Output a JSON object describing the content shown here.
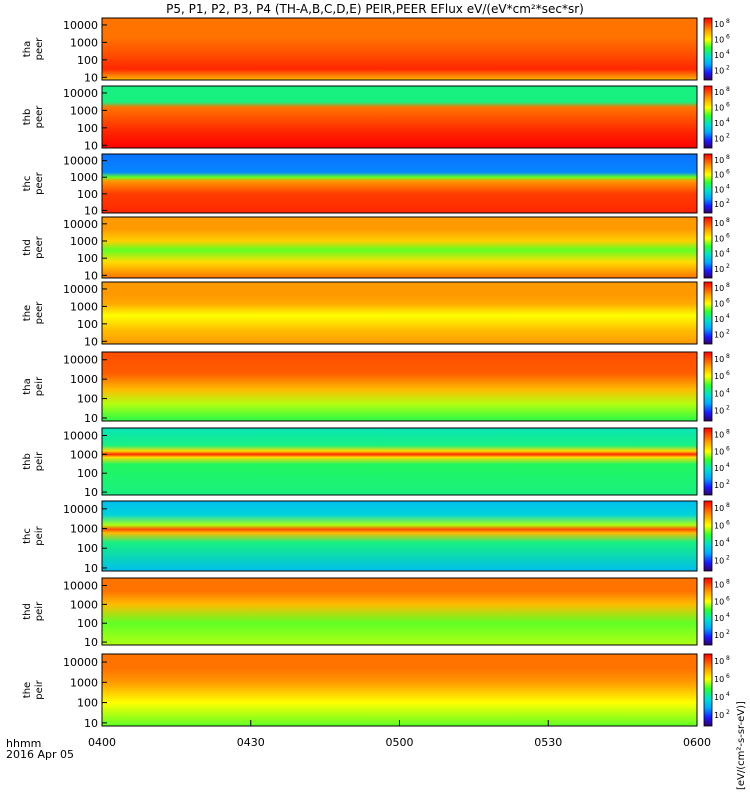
{
  "chart_data": {
    "type": "heatmap",
    "title": "P5, P1, P2, P3, P4 (TH-A,B,C,D,E) PEIR,PEER EFlux eV/(eV*cm²*sec*sr)",
    "x_ticks": [
      "0400",
      "0430",
      "0500",
      "0530",
      "0600"
    ],
    "x_range": [
      "0400",
      "0600"
    ],
    "x_footer": [
      "hhmm",
      "2016 Apr 05"
    ],
    "yscale": "log",
    "ylim": [
      7,
      25000
    ],
    "y_ticks": [
      "10",
      "100",
      "1000",
      "10000"
    ],
    "colorbar": {
      "scale": "log",
      "label": "[eV/(cm²-s-sr-eV)]",
      "tick_exponents": [
        2,
        4,
        6,
        8
      ]
    },
    "panels": [
      {
        "probe": "tha",
        "species": "peer",
        "profile": [
          [
            7,
            0.75
          ],
          [
            30,
            0.95
          ],
          [
            200,
            0.9
          ],
          [
            2000,
            0.85
          ],
          [
            25000,
            0.85
          ]
        ]
      },
      {
        "probe": "thb",
        "species": "peer",
        "profile": [
          [
            7,
            1.0
          ],
          [
            60,
            0.95
          ],
          [
            300,
            0.9
          ],
          [
            1500,
            0.85
          ],
          [
            3000,
            0.45
          ],
          [
            25000,
            0.45
          ]
        ]
      },
      {
        "probe": "thc",
        "species": "peer",
        "profile": [
          [
            7,
            0.95
          ],
          [
            100,
            0.92
          ],
          [
            600,
            0.8
          ],
          [
            1000,
            0.55
          ],
          [
            2000,
            0.22
          ],
          [
            25000,
            0.2
          ]
        ]
      },
      {
        "probe": "thd",
        "species": "peer",
        "profile": [
          [
            7,
            0.85
          ],
          [
            60,
            0.7
          ],
          [
            300,
            0.55
          ],
          [
            1000,
            0.72
          ],
          [
            5000,
            0.8
          ],
          [
            25000,
            0.8
          ]
        ]
      },
      {
        "probe": "the",
        "species": "peer",
        "profile": [
          [
            7,
            0.8
          ],
          [
            40,
            0.75
          ],
          [
            300,
            0.65
          ],
          [
            1500,
            0.78
          ],
          [
            5000,
            0.8
          ],
          [
            25000,
            0.8
          ]
        ]
      },
      {
        "probe": "tha",
        "species": "peir",
        "profile": [
          [
            7,
            0.5
          ],
          [
            50,
            0.6
          ],
          [
            300,
            0.75
          ],
          [
            2000,
            0.88
          ],
          [
            25000,
            0.9
          ]
        ]
      },
      {
        "probe": "thb",
        "species": "peir",
        "profile": [
          [
            7,
            0.45
          ],
          [
            300,
            0.48
          ],
          [
            700,
            0.7
          ],
          [
            1000,
            0.95
          ],
          [
            1500,
            0.7
          ],
          [
            3000,
            0.45
          ],
          [
            25000,
            0.4
          ]
        ]
      },
      {
        "probe": "thc",
        "species": "peir",
        "profile": [
          [
            7,
            0.3
          ],
          [
            200,
            0.45
          ],
          [
            600,
            0.75
          ],
          [
            900,
            0.9
          ],
          [
            1500,
            0.6
          ],
          [
            5000,
            0.35
          ],
          [
            25000,
            0.3
          ]
        ]
      },
      {
        "probe": "thd",
        "species": "peir",
        "profile": [
          [
            7,
            0.6
          ],
          [
            100,
            0.55
          ],
          [
            1000,
            0.75
          ],
          [
            5000,
            0.85
          ],
          [
            25000,
            0.85
          ]
        ]
      },
      {
        "probe": "the",
        "species": "peir",
        "profile": [
          [
            7,
            0.55
          ],
          [
            100,
            0.65
          ],
          [
            1000,
            0.8
          ],
          [
            5000,
            0.85
          ],
          [
            25000,
            0.85
          ]
        ]
      }
    ]
  }
}
